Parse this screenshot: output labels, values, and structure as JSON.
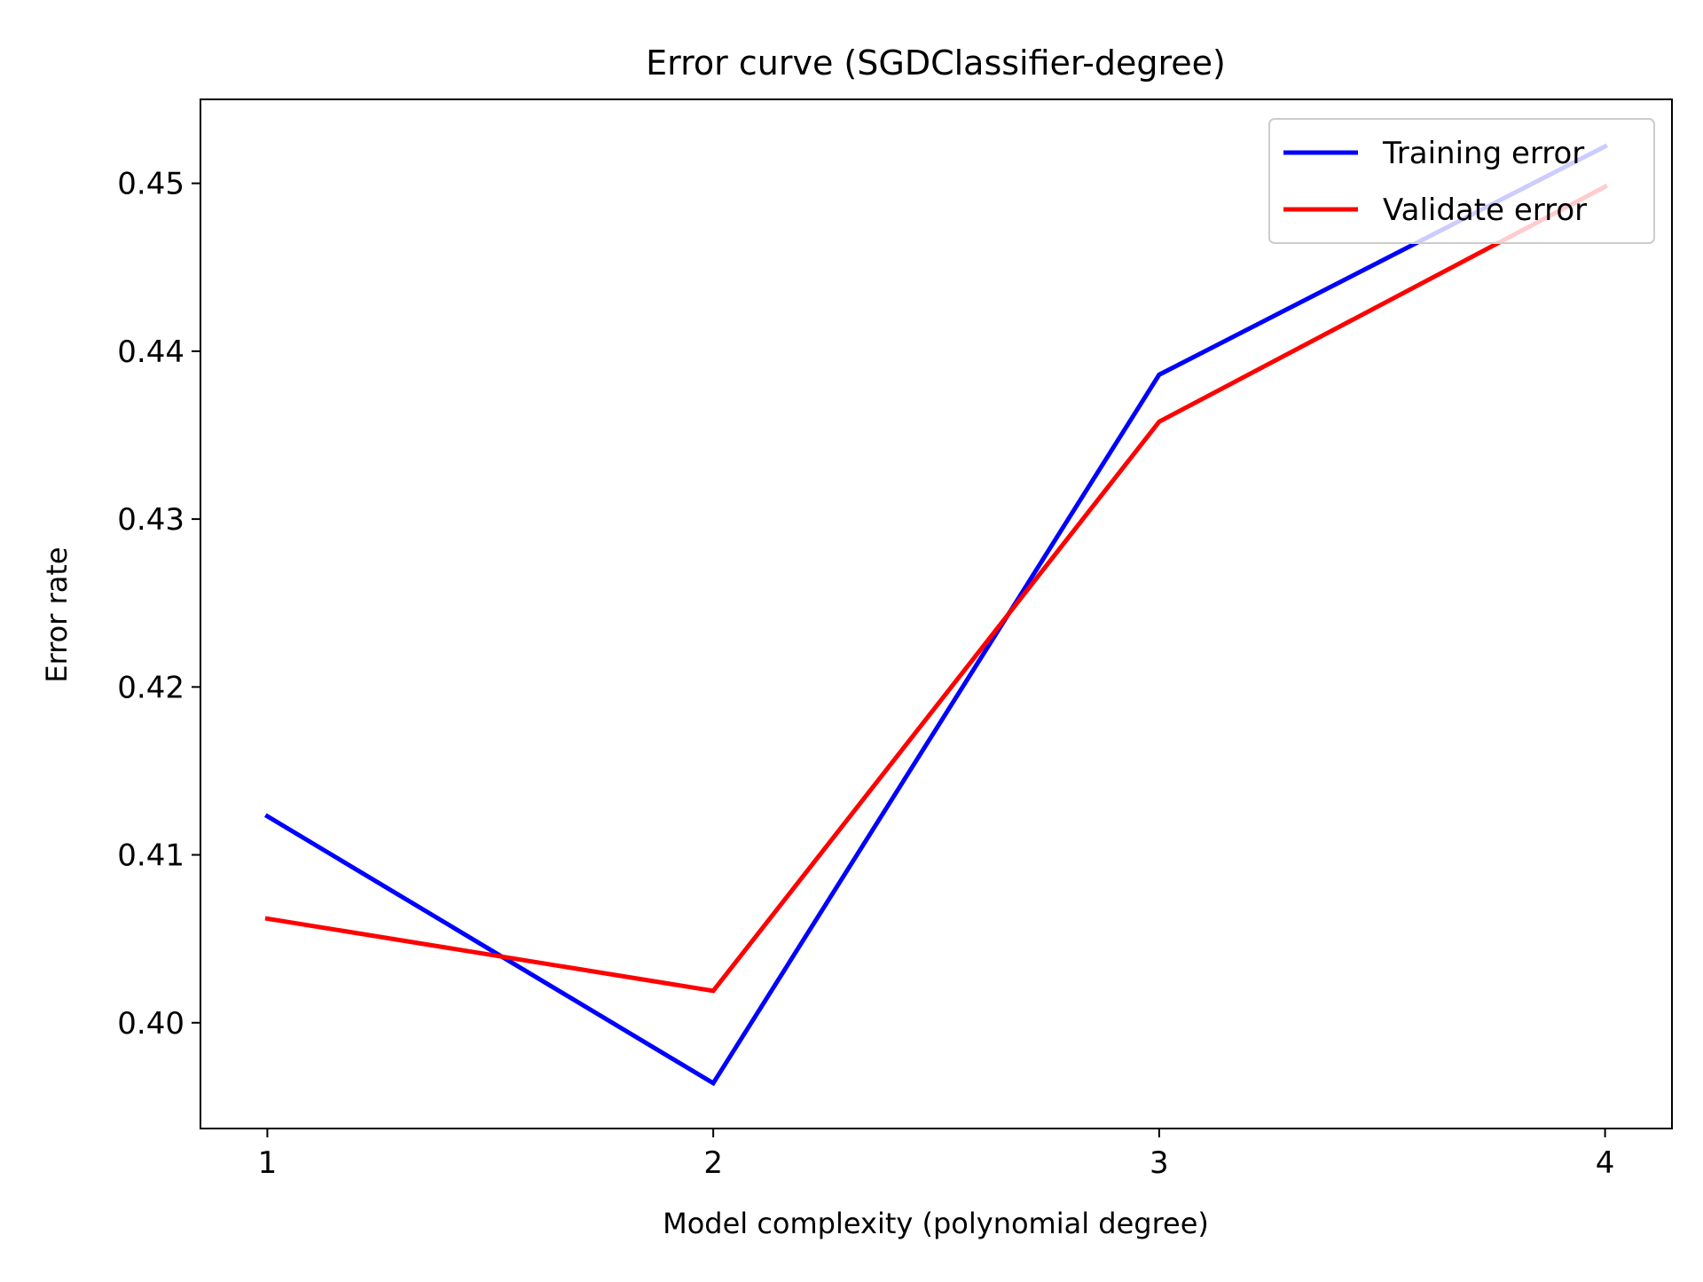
{
  "chart_data": {
    "type": "line",
    "title": "Error curve (SGDClassifier-degree)",
    "xlabel": "Model complexity (polynomial degree)",
    "ylabel": "Error rate",
    "x": [
      1,
      2,
      3,
      4
    ],
    "x_ticks": [
      1,
      2,
      3,
      4
    ],
    "x_tick_labels": [
      "1",
      "2",
      "3",
      "4"
    ],
    "xlim": [
      0.85,
      4.15
    ],
    "y_ticks": [
      0.4,
      0.41,
      0.42,
      0.43,
      0.44,
      0.45
    ],
    "y_tick_labels": [
      "0.40",
      "0.41",
      "0.42",
      "0.43",
      "0.44",
      "0.45"
    ],
    "ylim": [
      0.3937,
      0.455
    ],
    "grid": false,
    "legend_position": "top-right",
    "series": [
      {
        "name": "Training error",
        "color": "#0000ff",
        "values": [
          0.4123,
          0.3964,
          0.4386,
          0.4522
        ]
      },
      {
        "name": "Validate error",
        "color": "#ff0000",
        "values": [
          0.4062,
          0.4019,
          0.4358,
          0.4498
        ]
      }
    ]
  }
}
